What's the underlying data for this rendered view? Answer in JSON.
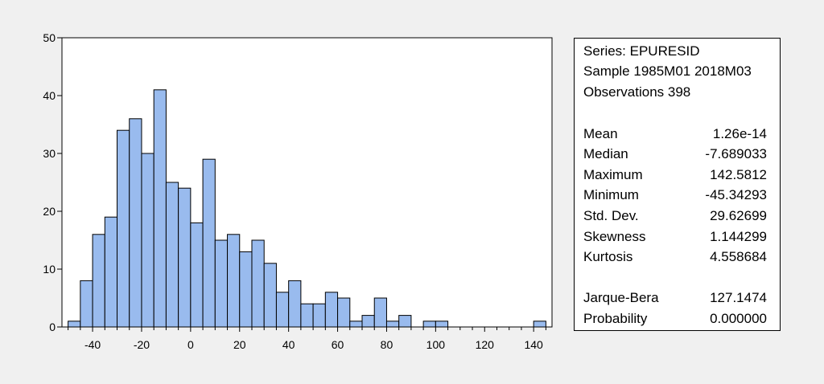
{
  "colors": {
    "background": "#f0f0f0",
    "plot_bg": "#ffffff",
    "bar_fill": "#99bbee",
    "bar_stroke": "#000000"
  },
  "chart_data": {
    "type": "bar",
    "subtype": "histogram",
    "bin_width": 5,
    "bin_starts": [
      -50,
      -45,
      -40,
      -35,
      -30,
      -25,
      -20,
      -15,
      -10,
      -5,
      0,
      5,
      10,
      15,
      20,
      25,
      30,
      35,
      40,
      45,
      50,
      55,
      60,
      65,
      70,
      75,
      80,
      85,
      90,
      95,
      100,
      105,
      110,
      115,
      120,
      125,
      130,
      135,
      140
    ],
    "values": [
      1,
      8,
      16,
      19,
      34,
      36,
      30,
      41,
      25,
      24,
      18,
      29,
      15,
      16,
      13,
      15,
      11,
      6,
      8,
      4,
      4,
      6,
      5,
      1,
      2,
      5,
      1,
      2,
      0,
      1,
      1,
      0,
      0,
      0,
      0,
      0,
      0,
      0,
      1
    ],
    "xlim": [
      -52.5,
      147.5
    ],
    "ylim": [
      0,
      50
    ],
    "xticks": [
      -40,
      -20,
      0,
      20,
      40,
      60,
      80,
      100,
      120,
      140
    ],
    "xticks_minor_step": 5,
    "yticks": [
      0,
      10,
      20,
      30,
      40,
      50
    ],
    "grid": false,
    "title": "",
    "xlabel": "",
    "ylabel": ""
  },
  "stats": {
    "series": "Series: EPURESID",
    "sample": "Sample 1985M01 2018M03",
    "observations": "Observations 398",
    "rows": [
      {
        "label": "Mean",
        "value": "1.26e-14"
      },
      {
        "label": "Median",
        "value": "-7.689033"
      },
      {
        "label": "Maximum",
        "value": "142.5812"
      },
      {
        "label": "Minimum",
        "value": "-45.34293"
      },
      {
        "label": "Std. Dev.",
        "value": "29.62699"
      },
      {
        "label": "Skewness",
        "value": "1.144299"
      },
      {
        "label": "Kurtosis",
        "value": "4.558684"
      },
      {
        "label": "Jarque-Bera",
        "value": "127.1474"
      },
      {
        "label": "Probability",
        "value": "0.000000"
      }
    ]
  }
}
